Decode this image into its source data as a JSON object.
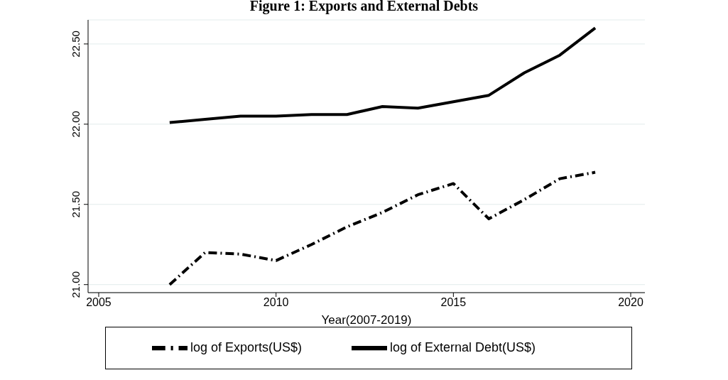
{
  "chart_data": {
    "type": "line",
    "title": "Figure 1: Exports and External Debts",
    "xlabel": "Year(2007-2019)",
    "x": [
      2007,
      2008,
      2009,
      2010,
      2011,
      2012,
      2013,
      2014,
      2015,
      2016,
      2017,
      2018,
      2019
    ],
    "series": [
      {
        "name": "log of Exports(US$)",
        "color": "#000000",
        "line_style": "dashdot",
        "values": [
          21.0,
          21.2,
          21.19,
          21.15,
          21.25,
          21.36,
          21.45,
          21.56,
          21.63,
          21.41,
          21.53,
          21.66,
          21.7
        ]
      },
      {
        "name": "log of External Debt(US$)",
        "color": "#000000",
        "line_style": "solid",
        "values": [
          22.01,
          22.03,
          22.05,
          22.05,
          22.06,
          22.06,
          22.11,
          22.1,
          22.14,
          22.18,
          22.32,
          22.43,
          22.6
        ]
      }
    ],
    "xlim": [
      2004.7,
      2020.4
    ],
    "xticks": [
      2005,
      2010,
      2015,
      2020
    ],
    "ylim": [
      20.95,
      22.65
    ],
    "yticks": [
      {
        "value": 21,
        "label": "21.00"
      },
      {
        "value": 21.5,
        "label": "21.50"
      },
      {
        "value": 22,
        "label": "22.00"
      },
      {
        "value": 22.5,
        "label": "22.50"
      }
    ],
    "grid": "y",
    "legend": "bottom",
    "marker": "none"
  }
}
